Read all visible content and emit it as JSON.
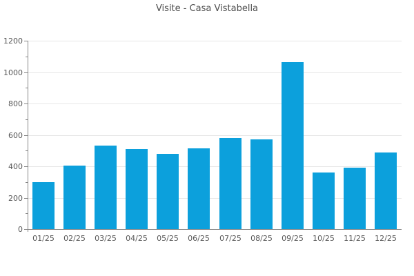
{
  "chart_data": {
    "type": "bar",
    "title": "Visite - Casa Vistabella",
    "categories": [
      "01/25",
      "02/25",
      "03/25",
      "04/25",
      "05/25",
      "06/25",
      "07/25",
      "08/25",
      "09/25",
      "10/25",
      "11/25",
      "12/25"
    ],
    "values": [
      300,
      405,
      530,
      510,
      480,
      515,
      580,
      570,
      1065,
      360,
      390,
      490
    ],
    "xlabel": "",
    "ylabel": "",
    "ylim": [
      0,
      1200
    ],
    "ytick_step": 200,
    "yminor_step": 100,
    "grid": true,
    "legend": "none",
    "colors": {
      "bar": "#0ca0dc",
      "gridline": "#e6e6e6",
      "axis": "#858585",
      "tick_label": "#555555",
      "title": "#4d4d4d",
      "background": "#ffffff"
    }
  }
}
